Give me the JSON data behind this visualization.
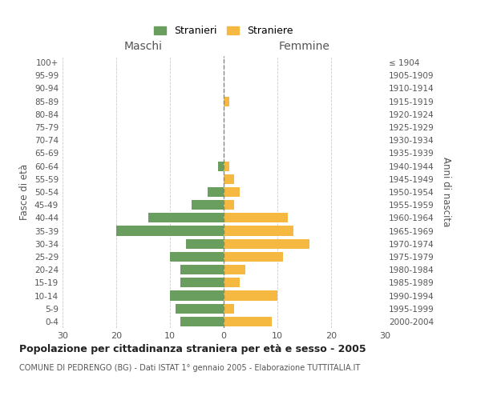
{
  "age_groups": [
    "0-4",
    "5-9",
    "10-14",
    "15-19",
    "20-24",
    "25-29",
    "30-34",
    "35-39",
    "40-44",
    "45-49",
    "50-54",
    "55-59",
    "60-64",
    "65-69",
    "70-74",
    "75-79",
    "80-84",
    "85-89",
    "90-94",
    "95-99",
    "100+"
  ],
  "birth_years": [
    "2000-2004",
    "1995-1999",
    "1990-1994",
    "1985-1989",
    "1980-1984",
    "1975-1979",
    "1970-1974",
    "1965-1969",
    "1960-1964",
    "1955-1959",
    "1950-1954",
    "1945-1949",
    "1940-1944",
    "1935-1939",
    "1930-1934",
    "1925-1929",
    "1920-1924",
    "1915-1919",
    "1910-1914",
    "1905-1909",
    "≤ 1904"
  ],
  "males": [
    8,
    9,
    10,
    8,
    8,
    10,
    7,
    20,
    14,
    6,
    3,
    0,
    1,
    0,
    0,
    0,
    0,
    0,
    0,
    0,
    0
  ],
  "females": [
    9,
    2,
    10,
    3,
    4,
    11,
    16,
    13,
    12,
    2,
    3,
    2,
    1,
    0,
    0,
    0,
    0,
    1,
    0,
    0,
    0
  ],
  "male_color": "#6a9e5e",
  "female_color": "#f5b942",
  "title_main": "Popolazione per cittadinanza straniera per età e sesso - 2005",
  "title_sub": "COMUNE DI PEDRENGO (BG) - Dati ISTAT 1° gennaio 2005 - Elaborazione TUTTITALIA.IT",
  "xlabel_left": "Maschi",
  "xlabel_right": "Femmine",
  "ylabel_left": "Fasce di età",
  "ylabel_right": "Anni di nascita",
  "legend_male": "Stranieri",
  "legend_female": "Straniere",
  "xlim": 30,
  "background_color": "#ffffff",
  "grid_color": "#cccccc"
}
